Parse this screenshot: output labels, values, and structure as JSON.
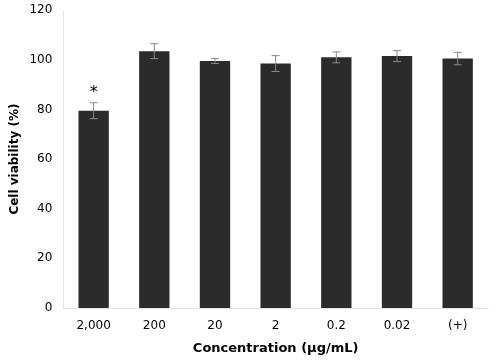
{
  "chart_data": {
    "type": "bar",
    "categories": [
      "2,000",
      "200",
      "20",
      "2",
      "0.2",
      "0.02",
      "(+)"
    ],
    "values": [
      79.5,
      103.5,
      99.5,
      98.5,
      101.0,
      101.5,
      100.5
    ],
    "errors": {
      "values": [
        3.2,
        3.0,
        1.0,
        3.2,
        2.2,
        2.2,
        2.5
      ],
      "color": "#888888"
    },
    "color": "#2b2b2b",
    "xlabel": "Concentration (μg/mL)",
    "ylabel": "Cell viability (%)",
    "ylim": [
      0,
      120
    ],
    "yticks": [
      0,
      20,
      40,
      60,
      80,
      100,
      120
    ],
    "grid": false,
    "annotations": [
      {
        "text": "*",
        "category": "2,000",
        "y": 83.5
      }
    ]
  }
}
